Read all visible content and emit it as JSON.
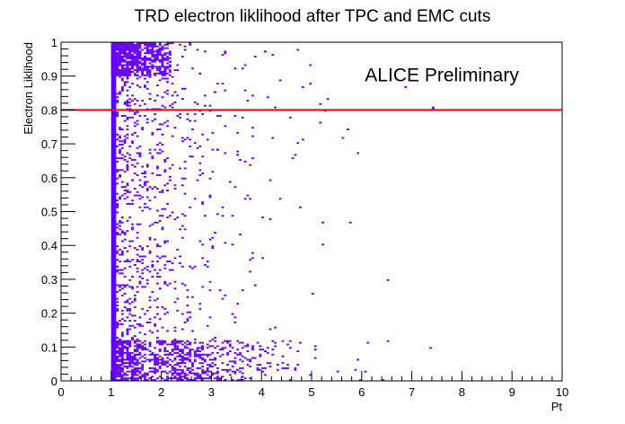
{
  "chart_data": {
    "type": "heatmap",
    "title": "TRD electron liklihood after TPC and EMC cuts",
    "xlabel": "Pt",
    "ylabel": "Electron Liklihood",
    "xlim": [
      0,
      10
    ],
    "ylim": [
      0,
      1
    ],
    "x_ticks": [
      "0",
      "1",
      "2",
      "3",
      "4",
      "5",
      "6",
      "7",
      "8",
      "9",
      "10"
    ],
    "y_ticks": [
      "0",
      "0.1",
      "0.2",
      "0.3",
      "0.4",
      "0.5",
      "0.6",
      "0.7",
      "0.8",
      "0.9",
      "1"
    ],
    "annotation": "ALICE Preliminary",
    "cut_line": {
      "y": 0.8,
      "color": "#ff0000"
    },
    "colors": {
      "cells": "#6600ff",
      "dense": "#5500ee",
      "hot": "#00c8c8"
    },
    "dense_band": {
      "x_start": 1.0,
      "x_end": 1.1
    },
    "x_min_data": 1.0,
    "grid": false,
    "legend": "none"
  }
}
